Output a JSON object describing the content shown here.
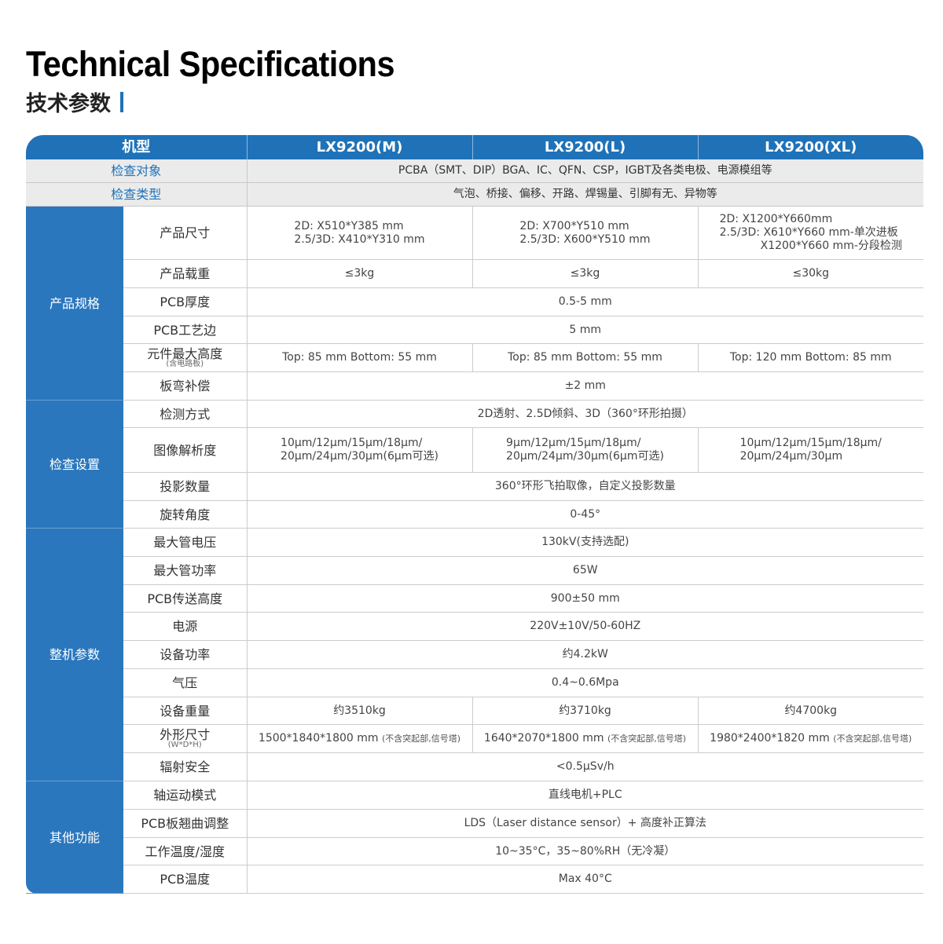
{
  "title_en": "Technical Specifications",
  "title_cn": "技术参数",
  "header": {
    "model_label": "机型",
    "models": [
      "LX9200(M)",
      "LX9200(L)",
      "LX9200(XL)"
    ]
  },
  "general": [
    {
      "label": "检查对象",
      "value": "PCBA（SMT、DIP）BGA、IC、QFN、CSP，IGBT及各类电极、电源模组等"
    },
    {
      "label": "检查类型",
      "value": "气泡、桥接、偏移、开路、焊锡量、引脚有无、异物等"
    }
  ],
  "groups": [
    {
      "name": "产品规格",
      "rows": [
        {
          "label": "产品尺寸",
          "values": [
            [
              "2D: X510*Y385 mm",
              "2.5/3D: X410*Y310 mm"
            ],
            [
              "2D: X700*Y510 mm",
              "2.5/3D: X600*Y510 mm"
            ],
            [
              "2D: X1200*Y660mm",
              "2.5/3D: X610*Y660 mm-单次进板",
              "X1200*Y660 mm-分段检测"
            ]
          ]
        },
        {
          "label": "产品载重",
          "values": [
            "≤3kg",
            "≤3kg",
            "≤30kg"
          ]
        },
        {
          "label": "PCB厚度",
          "value": "0.5-5 mm"
        },
        {
          "label": "PCB工艺边",
          "value": "5 mm"
        },
        {
          "label": "元件最大高度",
          "sub": "(含电路板)",
          "values": [
            "Top: 85 mm    Bottom: 55 mm",
            "Top: 85 mm    Bottom: 55 mm",
            "Top: 120 mm    Bottom: 85 mm"
          ]
        },
        {
          "label": "板弯补偿",
          "value": "±2 mm"
        }
      ]
    },
    {
      "name": "检查设置",
      "rows": [
        {
          "label": "检测方式",
          "value": "2D透射、2.5D倾斜、3D（360°环形拍摄）"
        },
        {
          "label": "图像解析度",
          "values": [
            [
              "10μm/12μm/15μm/18μm/",
              "20μm/24μm/30μm(6μm可选)"
            ],
            [
              "9μm/12μm/15μm/18μm/",
              "20μm/24μm/30μm(6μm可选)"
            ],
            [
              "10μm/12μm/15μm/18μm/",
              "20μm/24μm/30μm"
            ]
          ]
        },
        {
          "label": "投影数量",
          "value": "360°环形飞拍取像，自定义投影数量"
        },
        {
          "label": "旋转角度",
          "value": "0-45°"
        }
      ]
    },
    {
      "name": "整机参数",
      "rows": [
        {
          "label": "最大管电压",
          "value": "130kV(支持选配)"
        },
        {
          "label": "最大管功率",
          "value": "65W"
        },
        {
          "label": "PCB传送高度",
          "value": "900±50 mm"
        },
        {
          "label": "电源",
          "value": "220V±10V/50-60HZ"
        },
        {
          "label": "设备功率",
          "value": "约4.2kW"
        },
        {
          "label": "气压",
          "value": "0.4~0.6Mpa"
        },
        {
          "label": "设备重量",
          "values": [
            "约3510kg",
            "约3710kg",
            "约4700kg"
          ]
        },
        {
          "label": "外形尺寸",
          "sub": "(W*D*H)",
          "values": [
            "1500*1840*1800 mm",
            "1640*2070*1800 mm",
            "1980*2400*1820 mm"
          ],
          "note": "(不含突起部,信号塔)"
        },
        {
          "label": "辐射安全",
          "value": "<0.5μSv/h"
        }
      ]
    },
    {
      "name": "其他功能",
      "rows": [
        {
          "label": "轴运动模式",
          "value": "直线电机+PLC"
        },
        {
          "label": "PCB板翘曲调整",
          "value": "LDS（Laser distance sensor）+ 高度补正算法"
        },
        {
          "label": "工作温度/湿度",
          "value": "10~35°C，35~80%RH（无冷凝）"
        },
        {
          "label": "PCB温度",
          "value": "Max 40°C"
        }
      ]
    }
  ],
  "colors": {
    "accent": "#1f72b8",
    "gray_row": "#ebebeb"
  }
}
